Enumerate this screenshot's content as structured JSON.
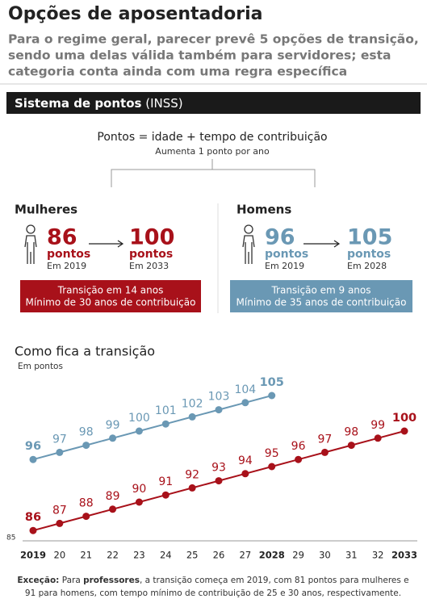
{
  "header": {
    "title": "Opções de aposentadoria",
    "subtitle": [
      "Para o regime geral, parecer prevê 5 opções de transição,",
      "sendo uma delas válida também para servidores; esta",
      "categoria conta ainda com uma regra específica"
    ]
  },
  "section": {
    "title": "Sistema de pontos",
    "suffix": " (INSS)"
  },
  "formula": {
    "text": "Pontos = idade + tempo de contribuição",
    "note": "Aumenta 1 ponto por ano"
  },
  "groups": [
    {
      "name": "Mulheres",
      "from": "86",
      "from_unit": "pontos",
      "from_year": "Em 2019",
      "to": "100",
      "to_unit": "pontos",
      "to_year": "Em 2033",
      "box": [
        "Transição em 14 anos",
        "Mínimo de 30 anos de contribuição"
      ],
      "color": "#a8111a"
    },
    {
      "name": "Homens",
      "from": "96",
      "from_unit": "pontos",
      "from_year": "Em 2019",
      "to": "105",
      "to_unit": "pontos",
      "to_year": "Em 2028",
      "box": [
        "Transição em 9 anos",
        "Mínimo de 35 anos de contribuição"
      ],
      "color": "#6a98b4"
    }
  ],
  "chart_data": {
    "type": "line",
    "title": "Como fica a transição",
    "y_label": "Em pontos",
    "x": [
      2019,
      2020,
      2021,
      2022,
      2023,
      2024,
      2025,
      2026,
      2027,
      2028,
      2029,
      2030,
      2031,
      2032,
      2033
    ],
    "xlim": [
      2019,
      2033
    ],
    "xticks": [
      2019,
      {
        "value": 2020,
        "label": "20"
      },
      {
        "value": 2021,
        "label": "21"
      },
      {
        "value": 2022,
        "label": "22"
      },
      {
        "value": 2023,
        "label": "23"
      },
      {
        "value": 2024,
        "label": "24"
      },
      {
        "value": 2025,
        "label": "25"
      },
      {
        "value": 2026,
        "label": "26"
      },
      {
        "value": 2027,
        "label": "27"
      },
      2028,
      {
        "value": 2029,
        "label": "29"
      },
      {
        "value": 2030,
        "label": "30"
      },
      {
        "value": 2031,
        "label": "31"
      },
      {
        "value": 2032,
        "label": "32"
      },
      2033
    ],
    "ylim": [
      85,
      105
    ],
    "yticks": [
      85
    ],
    "series": [
      {
        "name": "Homens",
        "color": "#6a98b4",
        "values": [
          96,
          97,
          98,
          99,
          100,
          101,
          102,
          103,
          104,
          105,
          null,
          null,
          null,
          null,
          null
        ]
      },
      {
        "name": "Mulheres",
        "color": "#a8111a",
        "values": [
          86,
          87,
          88,
          89,
          90,
          91,
          92,
          93,
          94,
          95,
          96,
          97,
          98,
          99,
          100
        ]
      }
    ]
  },
  "footnote": [
    [
      "Exceção:",
      " Para ",
      "professores",
      ", a transição começa em 2019, com 81 pontos para mulheres e"
    ],
    [
      "91 para homens, com tempo mínimo de contribuição de 25 e 30 anos, respectivamente."
    ]
  ]
}
